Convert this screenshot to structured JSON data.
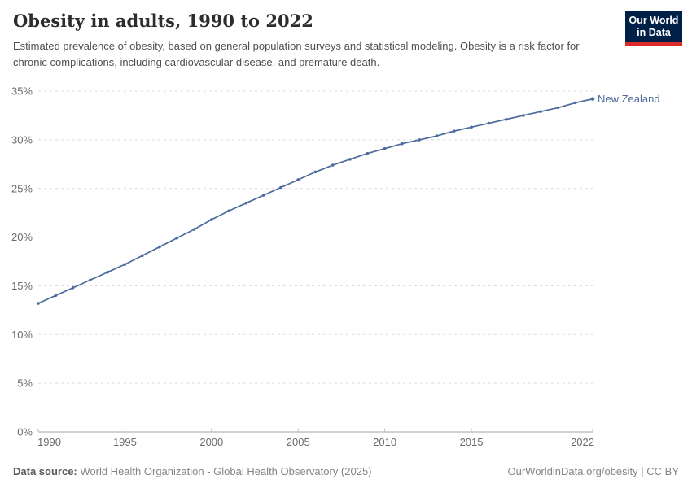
{
  "header": {
    "title": "Obesity in adults, 1990 to 2022",
    "subtitle": "Estimated prevalence of obesity, based on general population surveys and statistical modeling. Obesity is a risk factor for chronic complications, including cardiovascular disease, and premature death.",
    "logo": {
      "line1": "Our World",
      "line2": "in Data"
    }
  },
  "chart_data": {
    "type": "line",
    "title": "Obesity in adults, 1990 to 2022",
    "x": [
      1990,
      1991,
      1992,
      1993,
      1994,
      1995,
      1996,
      1997,
      1998,
      1999,
      2000,
      2001,
      2002,
      2003,
      2004,
      2005,
      2006,
      2007,
      2008,
      2009,
      2010,
      2011,
      2012,
      2013,
      2014,
      2015,
      2016,
      2017,
      2018,
      2019,
      2020,
      2021,
      2022
    ],
    "series": [
      {
        "name": "New Zealand",
        "values": [
          13.2,
          14.0,
          14.8,
          15.6,
          16.4,
          17.2,
          18.1,
          19.0,
          19.9,
          20.8,
          21.8,
          22.7,
          23.5,
          24.3,
          25.1,
          25.9,
          26.7,
          27.4,
          28.0,
          28.6,
          29.1,
          29.6,
          30.0,
          30.4,
          30.9,
          31.3,
          31.7,
          32.1,
          32.5,
          32.9,
          33.3,
          33.8,
          34.2
        ],
        "color": "#4c6a9c"
      }
    ],
    "xlabel": "",
    "ylabel": "",
    "ylim": [
      0,
      35
    ],
    "ytick_step": 5,
    "ytick_suffix": "%",
    "xticks": [
      1990,
      1995,
      2000,
      2005,
      2010,
      2015,
      2022
    ],
    "grid": "horizontal-dashed",
    "legend": "end-of-line-label"
  },
  "footer": {
    "source_label": "Data source:",
    "source_value": " World Health Organization - Global Health Observatory (2025)",
    "license": "OurWorldinData.org/obesity | CC BY"
  },
  "colors": {
    "line": "#4c6a9c",
    "grid": "#dcdcdc",
    "axis": "#a3a3a3",
    "tick": "#c2c2c2",
    "tick_label": "#6b6b6b",
    "logo_bg": "#002147",
    "logo_bar": "#dc2a2a"
  }
}
